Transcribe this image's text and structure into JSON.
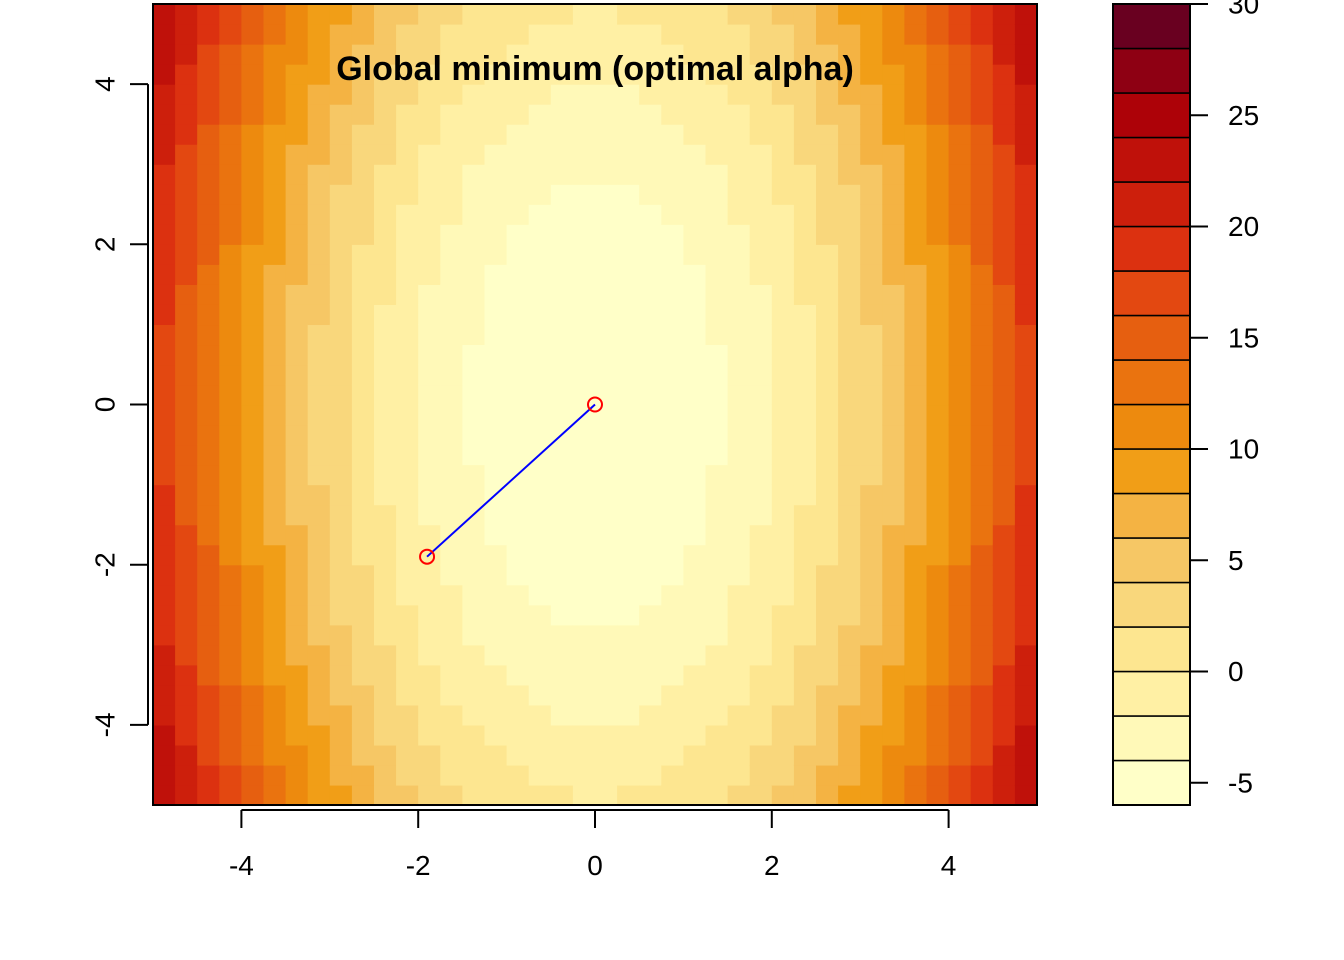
{
  "chart_data": {
    "type": "heatmap",
    "title": "Global minimum (optimal alpha)",
    "xlabel": "",
    "ylabel": "",
    "xlim": [
      -5,
      5
    ],
    "ylim": [
      -5,
      5
    ],
    "x_ticks": [
      -4,
      -2,
      0,
      2,
      4
    ],
    "y_ticks": [
      -4,
      -2,
      0,
      2,
      4
    ],
    "surface": {
      "formula": "z = x^2 + 0.25*y^2 - 6",
      "x_steps": 40,
      "y_steps": 40
    },
    "legend": {
      "placement": "right",
      "levels": [
        -6,
        -4,
        -2,
        0,
        2,
        4,
        6,
        8,
        10,
        12,
        14,
        16,
        18,
        20,
        22,
        24,
        26,
        28,
        30
      ],
      "ticks": [
        -5,
        0,
        5,
        10,
        15,
        20,
        25,
        30
      ],
      "colors": [
        "#ffffc8",
        "#fff9b8",
        "#fff0a4",
        "#fde690",
        "#f9d77c",
        "#f6c765",
        "#f4b343",
        "#f19e17",
        "#ed8a0e",
        "#ea730f",
        "#e65f10",
        "#e34811",
        "#dc3110",
        "#cd1f0c",
        "#bf110a",
        "#ad0208",
        "#8e0013",
        "#690020"
      ]
    },
    "path": {
      "points": [
        {
          "x": -1.9,
          "y": -1.9
        },
        {
          "x": 0,
          "y": 0
        }
      ],
      "line_color": "#0000ff",
      "marker_color": "#ff0000"
    }
  }
}
